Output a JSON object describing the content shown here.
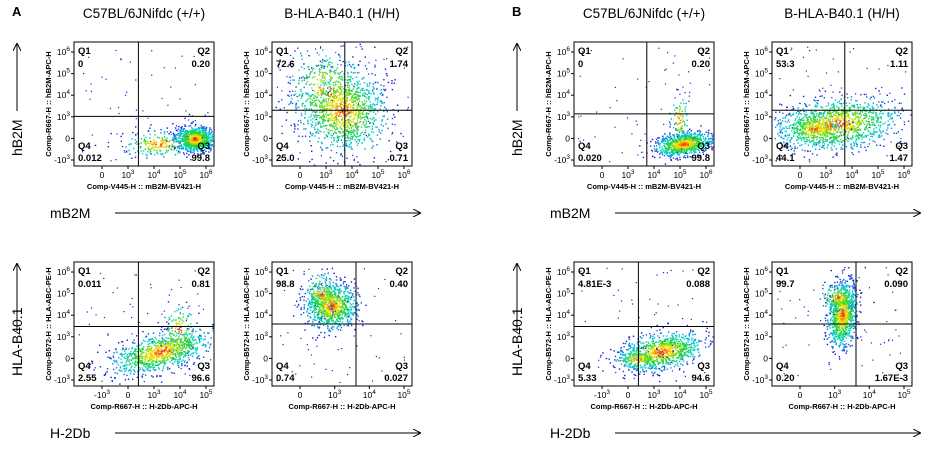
{
  "panels": [
    {
      "letter": "A",
      "genotype_titles": [
        "C57BL/6JNifdc (+/+)",
        "B-HLA-B40.1 (H/H)"
      ],
      "row_labels": {
        "top": {
          "y": "hB2M",
          "x": "mB2M"
        },
        "bottom": {
          "y": "HLA-B40.1",
          "x": "H-2Db"
        }
      }
    },
    {
      "letter": "B",
      "genotype_titles": [
        "C57BL/6JNifdc (+/+)",
        "B-HLA-B40.1 (H/H)"
      ],
      "row_labels": {
        "top": {
          "y": "hB2M",
          "x": "mB2M"
        },
        "bottom": {
          "y": "HLA-B40.1",
          "x": "H-2Db"
        }
      }
    }
  ],
  "chart_data": [
    {
      "panel": "A",
      "column": "C57BL/6JNifdc (+/+)",
      "type": "scatter",
      "xlabel": "Comp-V445-H :: mB2M-BV421-H",
      "ylabel": "Comp-R667-H :: hB2M-APC-H",
      "quadrants": {
        "Q1": "0",
        "Q2": "0.20",
        "Q3": "99.8",
        "Q4": "0.012"
      },
      "x_ticks": [
        "0",
        "10^3",
        "10^4",
        "10^5",
        "10^6"
      ],
      "y_ticks": [
        "-10^3",
        "0",
        "10^3",
        "10^4",
        "10^5",
        "10^6"
      ]
    },
    {
      "panel": "A",
      "column": "B-HLA-B40.1 (H/H)",
      "type": "scatter",
      "xlabel": "Comp-V445-H :: mB2M-BV421-H",
      "ylabel": "Comp-R667-H :: hB2M-APC-H",
      "quadrants": {
        "Q1": "72.6",
        "Q2": "1.74",
        "Q3": "0.71",
        "Q4": "25.0"
      },
      "x_ticks": [
        "0",
        "10^3",
        "10^4",
        "10^5",
        "10^6"
      ],
      "y_ticks": [
        "-10^3",
        "0",
        "10^3",
        "10^4",
        "10^5",
        "10^6"
      ]
    },
    {
      "panel": "A",
      "column": "C57BL/6JNifdc (+/+)",
      "type": "scatter",
      "xlabel": "Comp-R667-H :: H-2Db-APC-H",
      "ylabel": "Comp-B572-H :: HLA-ABC-PE-H",
      "quadrants": {
        "Q1": "0.011",
        "Q2": "0.81",
        "Q3": "96.6",
        "Q4": "2.55"
      },
      "x_ticks": [
        "-10^3",
        "0",
        "10^3",
        "10^4",
        "10^5"
      ],
      "y_ticks": [
        "-10^3",
        "0",
        "10^3",
        "10^4",
        "10^5",
        "10^6"
      ]
    },
    {
      "panel": "A",
      "column": "B-HLA-B40.1 (H/H)",
      "type": "scatter",
      "xlabel": "Comp-R667-H :: H-2Db-APC-H",
      "ylabel": "Comp-B572-H :: HLA-ABC-PE-H",
      "quadrants": {
        "Q1": "98.8",
        "Q2": "0.40",
        "Q3": "0.027",
        "Q4": "0.74"
      },
      "x_ticks": [
        "0",
        "10^3",
        "10^4",
        "10^5"
      ],
      "y_ticks": [
        "-10^3",
        "0",
        "10^3",
        "10^4",
        "10^5",
        "10^6"
      ]
    },
    {
      "panel": "B",
      "column": "C57BL/6JNifdc (+/+)",
      "type": "scatter",
      "xlabel": "Comp-V445-H :: mB2M-BV421-H",
      "ylabel": "Comp-R667-H :: hB2M-APC-H",
      "quadrants": {
        "Q1": "0",
        "Q2": "0.20",
        "Q3": "99.8",
        "Q4": "0.020"
      },
      "x_ticks": [
        "0",
        "10^3",
        "10^4",
        "10^5",
        "10^6"
      ],
      "y_ticks": [
        "-10^3",
        "0",
        "10^3",
        "10^4",
        "10^5",
        "10^6"
      ]
    },
    {
      "panel": "B",
      "column": "B-HLA-B40.1 (H/H)",
      "type": "scatter",
      "xlabel": "Comp-V445-H :: mB2M-BV421-H",
      "ylabel": "Comp-R667-H :: hB2M-APC-H",
      "quadrants": {
        "Q1": "53.3",
        "Q2": "1.11",
        "Q3": "1.47",
        "Q4": "44.1"
      },
      "x_ticks": [
        "0",
        "10^3",
        "10^4",
        "10^5",
        "10^6"
      ],
      "y_ticks": [
        "-10^3",
        "0",
        "10^3",
        "10^4",
        "10^5",
        "10^6"
      ]
    },
    {
      "panel": "B",
      "column": "C57BL/6JNifdc (+/+)",
      "type": "scatter",
      "xlabel": "Comp-R667-H :: H-2Db-APC-H",
      "ylabel": "Comp-B572-H :: HLA-ABC-PE-H",
      "quadrants": {
        "Q1": "4.81E-3",
        "Q2": "0.088",
        "Q3": "94.6",
        "Q4": "5.33"
      },
      "x_ticks": [
        "-10^3",
        "0",
        "10^3",
        "10^4",
        "10^5"
      ],
      "y_ticks": [
        "-10^3",
        "0",
        "10^3",
        "10^4",
        "10^5",
        "10^6"
      ]
    },
    {
      "panel": "B",
      "column": "B-HLA-B40.1 (H/H)",
      "type": "scatter",
      "xlabel": "Comp-R667-H :: H-2Db-APC-H",
      "ylabel": "Comp-B572-H :: HLA-ABC-PE-H",
      "quadrants": {
        "Q1": "99.7",
        "Q2": "0.090",
        "Q3": "1.67E-3",
        "Q4": "0.20"
      },
      "x_ticks": [
        "0",
        "10^3",
        "10^4",
        "10^5"
      ],
      "y_ticks": [
        "-10^3",
        "0",
        "10^3",
        "10^4",
        "10^5",
        "10^6"
      ]
    }
  ]
}
